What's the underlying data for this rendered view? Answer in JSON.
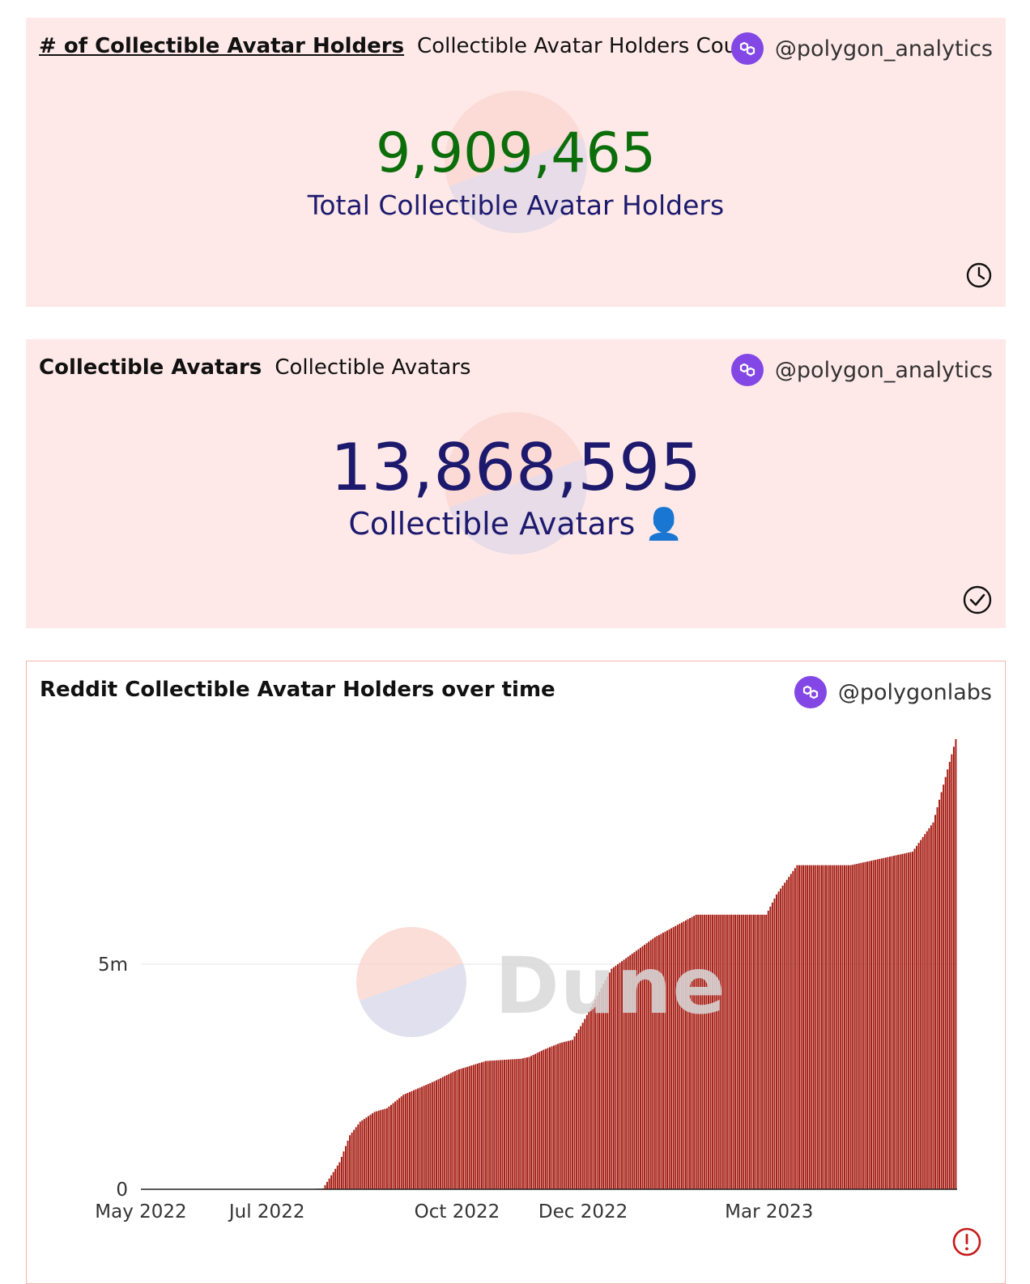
{
  "card_holders": {
    "title": "# of Collectible Avatar Holders",
    "subtitle": "Collectible Avatar Holders Count",
    "author": "@polygon_analytics",
    "value": "9,909,465",
    "label": "Total Collectible Avatar Holders",
    "value_color": "#0b6e0b",
    "status_icon": "clock-icon"
  },
  "card_avatars": {
    "title": "Collectible Avatars",
    "subtitle": "Collectible Avatars",
    "author": "@polygon_analytics",
    "value": "13,868,595",
    "label": "Collectible Avatars 👤",
    "value_color": "#1d1a6e",
    "status_icon": "check-circle-icon"
  },
  "chart_card": {
    "title": "Reddit Collectible Avatar Holders over time",
    "author": "@polygonlabs",
    "watermark": "Dune",
    "status_icon": "error-icon",
    "brand_color": "#8247e5",
    "bar_color": "#a51a10"
  },
  "chart_data": {
    "type": "bar",
    "title": "Reddit Collectible Avatar Holders over time",
    "xlabel": "",
    "ylabel": "",
    "x_range": [
      "2022-05-01",
      "2023-05-31"
    ],
    "ylim": [
      0,
      10000000
    ],
    "yticks": [
      {
        "value": 0,
        "label": "0"
      },
      {
        "value": 5000000,
        "label": "5m"
      }
    ],
    "xticks": [
      {
        "date": "2022-05-01",
        "label": "May 2022"
      },
      {
        "date": "2022-07-01",
        "label": "Jul 2022"
      },
      {
        "date": "2022-10-01",
        "label": "Oct 2022"
      },
      {
        "date": "2022-12-01",
        "label": "Dec 2022"
      },
      {
        "date": "2023-03-01",
        "label": "Mar 2023"
      }
    ],
    "grid": true,
    "legend": false,
    "anchor_points": [
      {
        "date": "2022-05-01",
        "value": 0
      },
      {
        "date": "2022-07-20",
        "value": 0
      },
      {
        "date": "2022-07-28",
        "value": 20000
      },
      {
        "date": "2022-08-05",
        "value": 600000
      },
      {
        "date": "2022-08-10",
        "value": 1200000
      },
      {
        "date": "2022-08-15",
        "value": 1500000
      },
      {
        "date": "2022-08-22",
        "value": 1720000
      },
      {
        "date": "2022-08-28",
        "value": 1800000
      },
      {
        "date": "2022-09-05",
        "value": 2100000
      },
      {
        "date": "2022-09-20",
        "value": 2400000
      },
      {
        "date": "2022-10-01",
        "value": 2650000
      },
      {
        "date": "2022-10-15",
        "value": 2850000
      },
      {
        "date": "2022-11-01",
        "value": 2900000
      },
      {
        "date": "2022-11-05",
        "value": 2940000
      },
      {
        "date": "2022-11-12",
        "value": 3100000
      },
      {
        "date": "2022-11-20",
        "value": 3250000
      },
      {
        "date": "2022-11-26",
        "value": 3320000
      },
      {
        "date": "2022-12-01",
        "value": 3700000
      },
      {
        "date": "2022-12-15",
        "value": 4900000
      },
      {
        "date": "2023-01-05",
        "value": 5600000
      },
      {
        "date": "2023-01-25",
        "value": 6100000
      },
      {
        "date": "2023-02-28",
        "value": 6100000
      },
      {
        "date": "2023-03-05",
        "value": 6550000
      },
      {
        "date": "2023-03-15",
        "value": 7200000
      },
      {
        "date": "2023-04-10",
        "value": 7200000
      },
      {
        "date": "2023-05-10",
        "value": 7500000
      },
      {
        "date": "2023-05-20",
        "value": 8150000
      },
      {
        "date": "2023-05-31",
        "value": 10000000
      }
    ]
  }
}
